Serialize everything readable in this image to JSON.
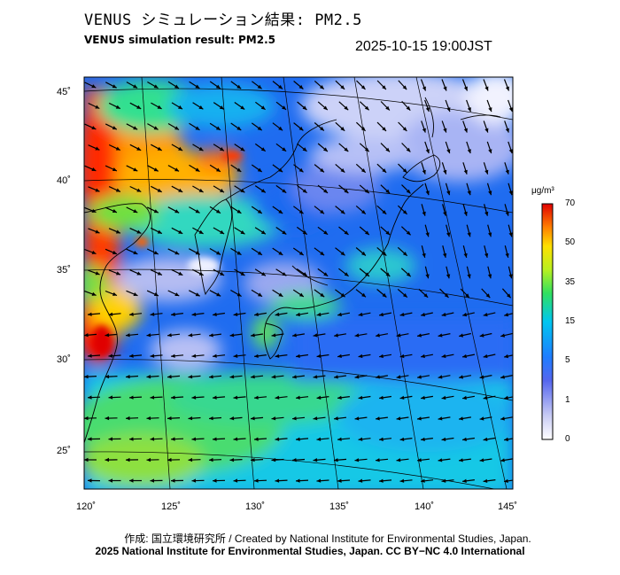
{
  "header": {
    "title_jp": "VENUS シミュレーション結果: PM2.5",
    "title_en": "VENUS simulation result: PM2.5",
    "timestamp": "2025-10-15 19:00JST"
  },
  "map": {
    "lat_ticks": [
      "45˚",
      "40˚",
      "35˚",
      "30˚",
      "25˚"
    ],
    "lon_ticks": [
      "120˚",
      "125˚",
      "130˚",
      "135˚",
      "140˚",
      "145˚"
    ],
    "region": "East Asia / Japan"
  },
  "colorbar": {
    "unit": "μg/m³",
    "ticks": [
      "70",
      "50",
      "35",
      "15",
      "5",
      "1",
      "0"
    ],
    "colors": [
      "#f8f8ff",
      "#8f9cf4",
      "#2a63ff",
      "#00b8ff",
      "#00e8c0",
      "#6ee030",
      "#fff000",
      "#ff9a00",
      "#ff2a00",
      "#e60000"
    ]
  },
  "footer": {
    "credit_line1": "作成: 国立環境研究所 / Created by National Institute for Environmental Studies, Japan.",
    "credit_line2": "2025 National Institute for Environmental Studies, Japan. CC BY−NC 4.0 International"
  }
}
